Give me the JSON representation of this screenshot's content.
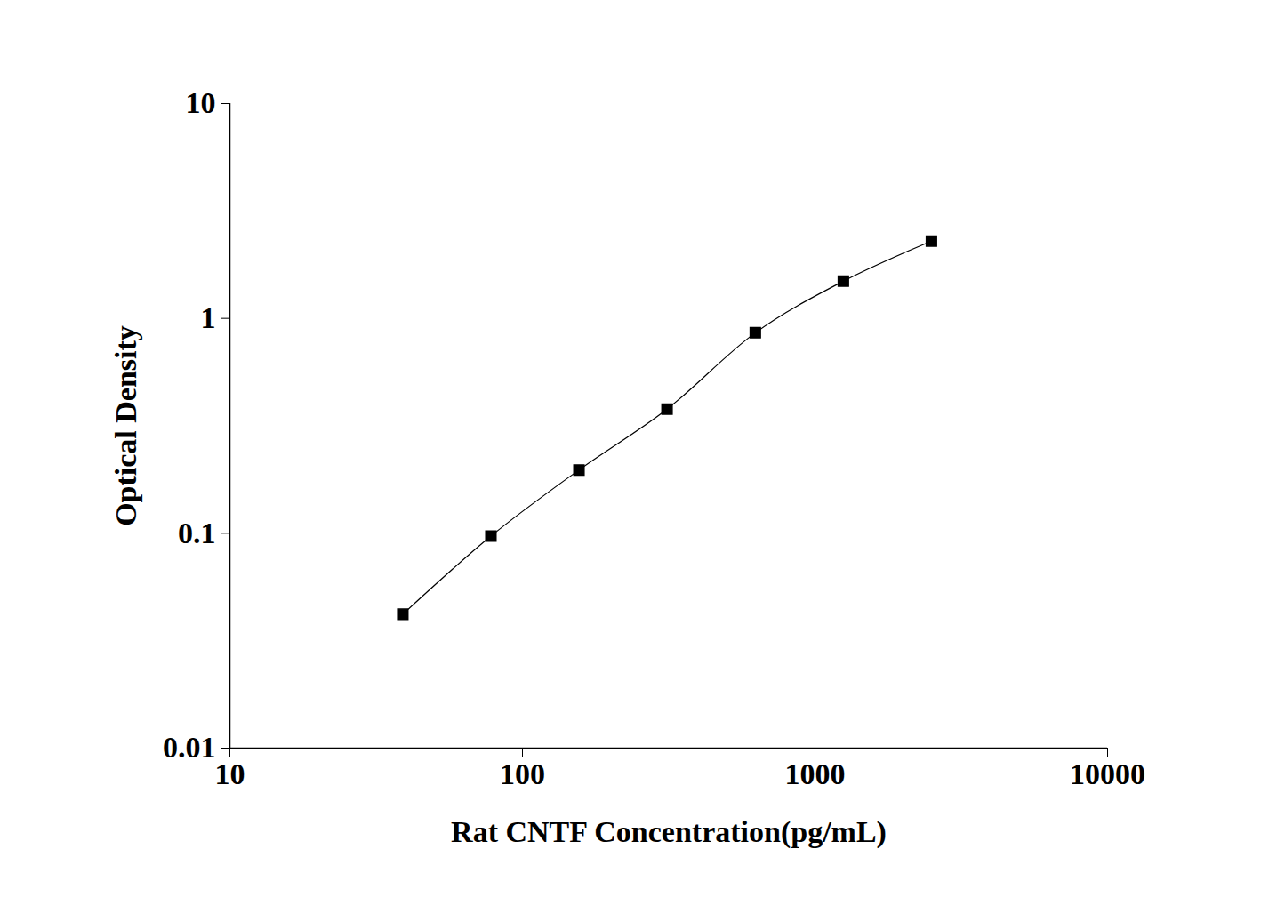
{
  "chart_data": {
    "type": "line",
    "x_label": "Rat CNTF Concentration(pg/mL)",
    "y_label": "Optical Density",
    "x": [
      39,
      78,
      156,
      312,
      625,
      1250,
      2500
    ],
    "values": [
      0.042,
      0.097,
      0.197,
      0.378,
      0.857,
      1.49,
      2.29
    ],
    "color": "#000000",
    "marker": "square",
    "log": true,
    "grid": false,
    "xlim": [
      10,
      10000
    ],
    "xticks": [
      10,
      100,
      1000,
      10000
    ],
    "ylim": [
      0.01,
      10
    ],
    "yticks": [
      0.01,
      0.1,
      1,
      10
    ]
  }
}
